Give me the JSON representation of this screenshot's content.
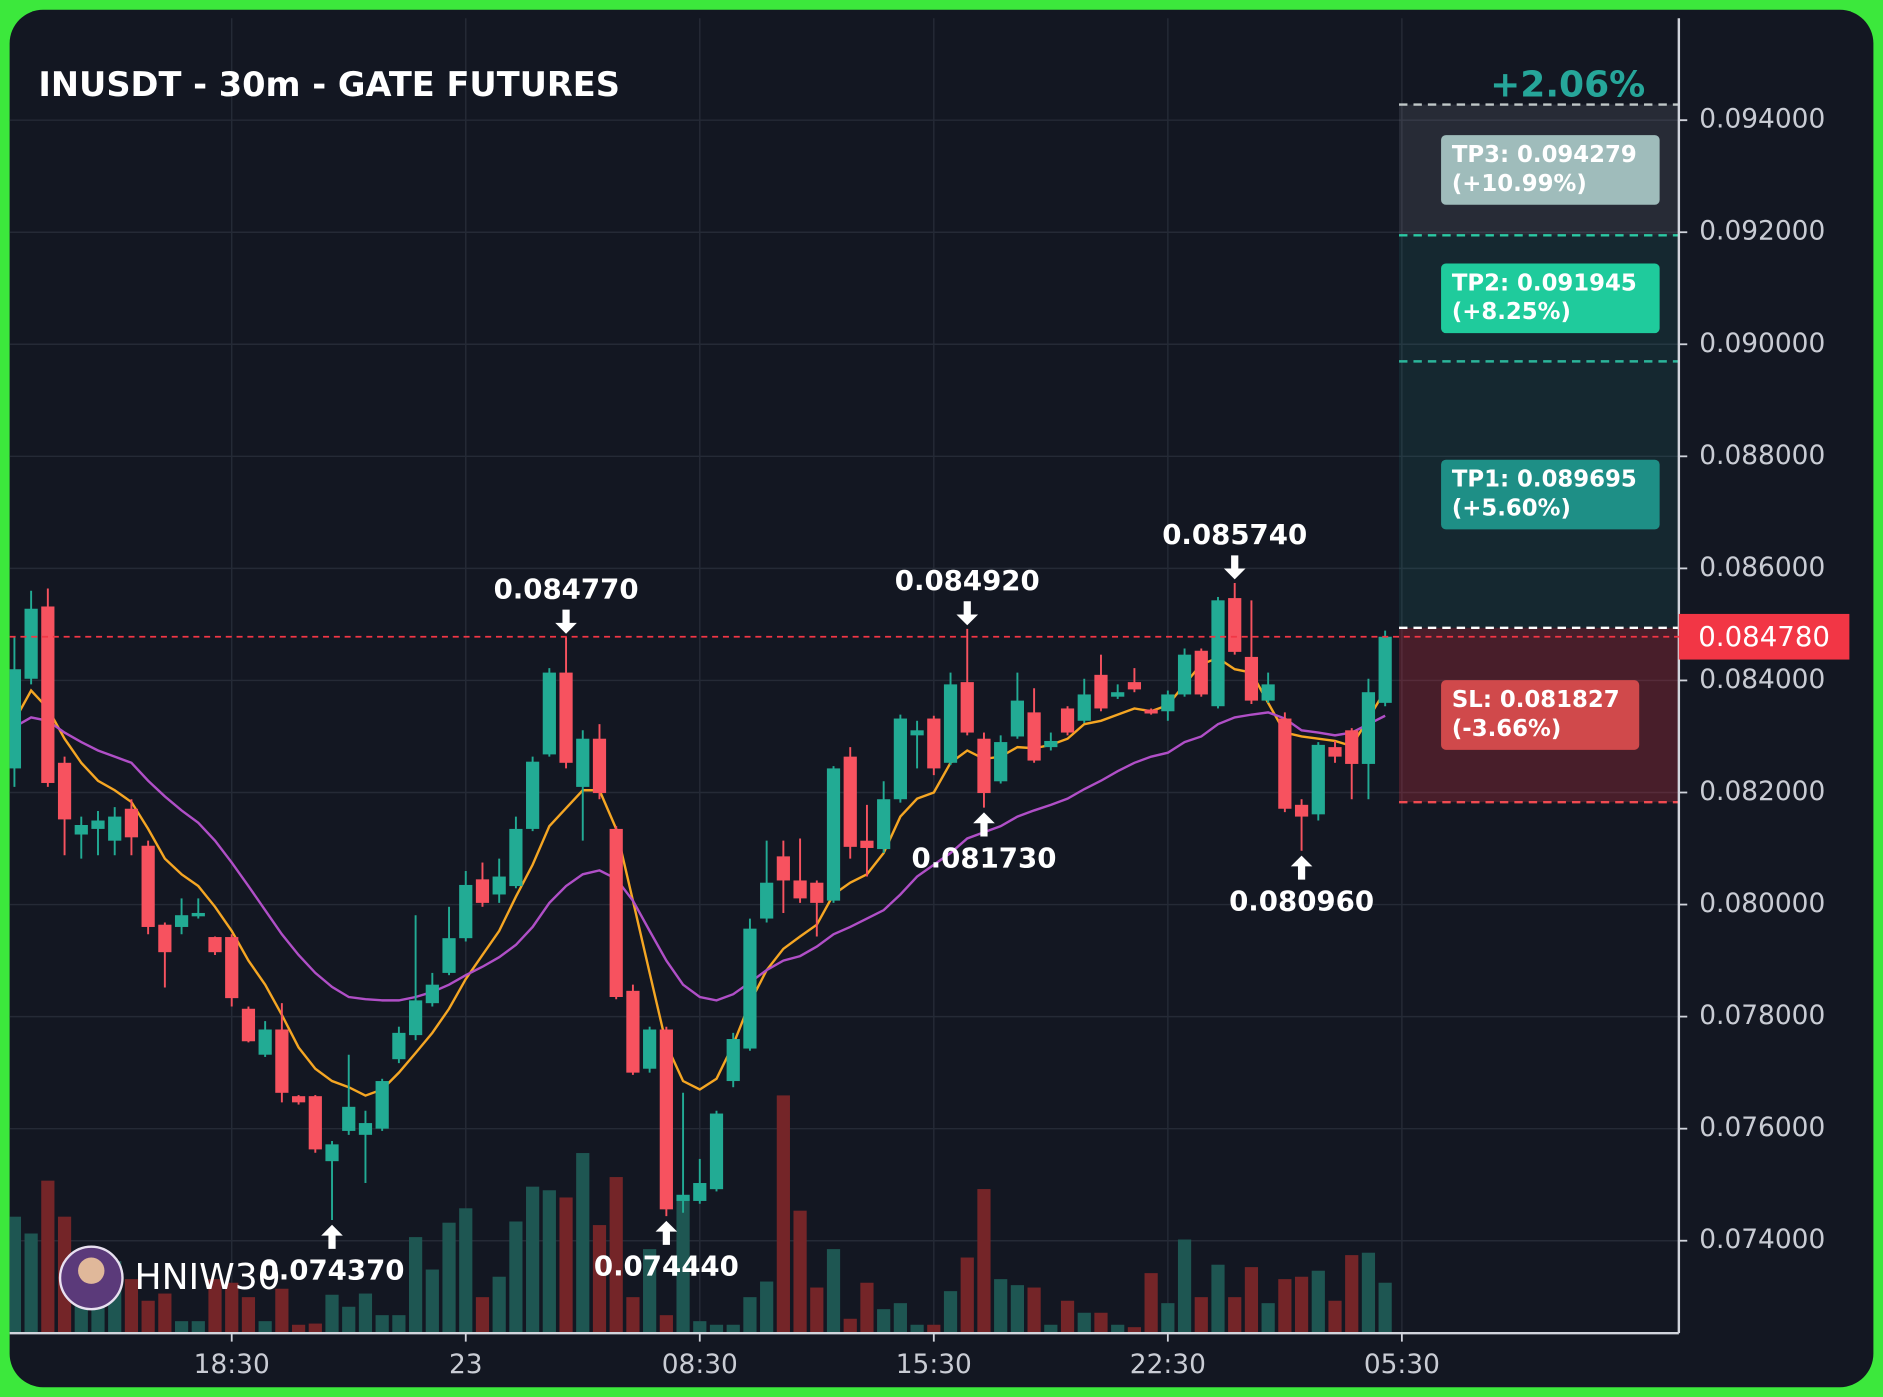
{
  "chart_data": {
    "type": "candlestick",
    "title": "INUSDT - 30m - GATE FUTURES",
    "watermark": "HNIW30",
    "up_color": "#22ab94",
    "down_color": "#f7525f",
    "volume_up_color": "#1e5652",
    "volume_down_color": "#742528",
    "grid": true,
    "ylim": [
      0.07235,
      0.09582
    ],
    "yticks": [
      {
        "value": 0.074,
        "label": "0.074000"
      },
      {
        "value": 0.076,
        "label": "0.076000"
      },
      {
        "value": 0.078,
        "label": "0.078000"
      },
      {
        "value": 0.08,
        "label": "0.080000"
      },
      {
        "value": 0.082,
        "label": "0.082000"
      },
      {
        "value": 0.084,
        "label": "0.084000"
      },
      {
        "value": 0.086,
        "label": "0.086000"
      },
      {
        "value": 0.088,
        "label": "0.088000"
      },
      {
        "value": 0.09,
        "label": "0.090000"
      },
      {
        "value": 0.092,
        "label": "0.092000"
      },
      {
        "value": 0.094,
        "label": "0.094000"
      }
    ],
    "volume_ylim": [
      0,
      1095
    ],
    "categories": [
      null,
      null,
      null,
      null,
      null,
      null,
      null,
      null,
      null,
      null,
      null,
      null,
      null,
      "18:30",
      null,
      null,
      null,
      null,
      null,
      null,
      null,
      null,
      null,
      null,
      null,
      null,
      null,
      "23",
      null,
      null,
      null,
      null,
      null,
      null,
      null,
      null,
      null,
      null,
      null,
      null,
      null,
      "08:30",
      null,
      null,
      null,
      null,
      null,
      null,
      null,
      null,
      null,
      null,
      null,
      null,
      null,
      "15:30",
      null,
      null,
      null,
      null,
      null,
      null,
      null,
      null,
      null,
      null,
      null,
      null,
      null,
      "22:30",
      null,
      null,
      null,
      null,
      null,
      null,
      null,
      null,
      null,
      null,
      null,
      null,
      null,
      "05:30"
    ],
    "open": [
      0.08243,
      0.08403,
      0.08532,
      0.08253,
      0.08125,
      0.08135,
      0.08114,
      0.08171,
      0.08105,
      0.07964,
      0.0796,
      0.07979,
      0.07942,
      0.07942,
      0.07814,
      0.07732,
      0.07777,
      0.07658,
      0.07658,
      0.07542,
      0.07596,
      0.07589,
      0.076,
      0.07724,
      0.07767,
      0.07824,
      0.07878,
      0.0794,
      0.08045,
      0.08018,
      0.08033,
      0.08135,
      0.08268,
      0.08414,
      0.0821,
      0.08296,
      0.08135,
      0.07846,
      0.07707,
      0.07777,
      0.07471,
      0.07471,
      0.07492,
      0.07685,
      0.07743,
      0.07975,
      0.08086,
      0.08043,
      0.08039,
      0.08007,
      0.08264,
      0.08114,
      0.08099,
      0.08188,
      0.08302,
      0.08332,
      0.08253,
      0.08397,
      0.08296,
      0.0822,
      0.083,
      0.08343,
      0.08281,
      0.0835,
      0.08328,
      0.0841,
      0.08371,
      0.08397,
      0.08348,
      0.08345,
      0.08375,
      0.08453,
      0.08354,
      0.08547,
      0.08442,
      0.08364,
      0.08332,
      0.08178,
      0.08161,
      0.08281,
      0.08311,
      0.08251,
      0.0836,
      null
    ],
    "high": [
      0.08478,
      0.0856,
      0.08564,
      0.08264,
      0.08157,
      0.08167,
      0.08174,
      0.08188,
      0.08114,
      0.07968,
      0.08011,
      0.08011,
      0.07943,
      0.07947,
      0.07818,
      0.07792,
      0.07824,
      0.0766,
      0.0766,
      0.07578,
      0.07732,
      0.07632,
      0.07689,
      0.07782,
      0.07981,
      0.07878,
      0.07996,
      0.0806,
      0.08075,
      0.08082,
      0.08157,
      0.08264,
      0.08422,
      0.08477,
      0.08311,
      0.08322,
      0.0814,
      0.07857,
      0.07782,
      0.07782,
      0.07664,
      0.07546,
      0.07632,
      0.07771,
      0.07975,
      0.08114,
      0.08114,
      0.08118,
      0.08043,
      0.08247,
      0.08281,
      0.08178,
      0.0822,
      0.08339,
      0.08328,
      0.08337,
      0.08414,
      0.08492,
      0.08307,
      0.08302,
      0.08414,
      0.08386,
      0.08307,
      0.08354,
      0.08403,
      0.08446,
      0.08393,
      0.08422,
      0.0835,
      0.08382,
      0.08457,
      0.08457,
      0.08549,
      0.08574,
      0.08543,
      0.08414,
      0.08343,
      0.08188,
      0.0829,
      0.08292,
      0.08315,
      0.08403,
      0.08489,
      null
    ],
    "low": [
      0.0821,
      0.08393,
      0.0821,
      0.08088,
      0.08082,
      0.08088,
      0.08088,
      0.08088,
      0.07947,
      0.07852,
      0.07947,
      0.07975,
      0.0791,
      0.07818,
      0.07754,
      0.07728,
      0.07647,
      0.07643,
      0.07557,
      0.07437,
      0.07589,
      0.07503,
      0.07596,
      0.07717,
      0.07758,
      0.07818,
      0.07874,
      0.07934,
      0.07996,
      0.08003,
      0.08029,
      0.08131,
      0.08264,
      0.08243,
      0.08114,
      0.08188,
      0.07831,
      0.07696,
      0.077,
      0.07444,
      0.0745,
      0.07466,
      0.07488,
      0.07674,
      0.07739,
      0.07968,
      0.07985,
      0.08003,
      0.07943,
      0.08003,
      0.08082,
      0.0805,
      0.08092,
      0.08182,
      0.08243,
      0.08231,
      0.08249,
      0.08302,
      0.08173,
      0.08216,
      0.08296,
      0.08253,
      0.08275,
      0.08302,
      0.08324,
      0.08345,
      0.08367,
      0.08379,
      0.08339,
      0.08328,
      0.08371,
      0.08371,
      0.0835,
      0.08446,
      0.08358,
      0.0836,
      0.08165,
      0.08096,
      0.0815,
      0.08253,
      0.08188,
      0.08188,
      0.08354,
      null
    ],
    "close": [
      0.0842,
      0.08528,
      0.08217,
      0.08152,
      0.08142,
      0.0815,
      0.08157,
      0.0812,
      0.0796,
      0.07915,
      0.07981,
      0.07985,
      0.07915,
      0.07833,
      0.07756,
      0.07777,
      0.07664,
      0.07647,
      0.07563,
      0.07572,
      0.07639,
      0.0761,
      0.07685,
      0.07771,
      0.07829,
      0.07857,
      0.0794,
      0.08035,
      0.08003,
      0.0805,
      0.08135,
      0.08255,
      0.08414,
      0.08253,
      0.08296,
      0.08199,
      0.07835,
      0.077,
      0.07777,
      0.07456,
      0.07482,
      0.07503,
      0.07627,
      0.0776,
      0.07957,
      0.08039,
      0.08043,
      0.08011,
      0.08003,
      0.08243,
      0.08103,
      0.08101,
      0.08188,
      0.08332,
      0.08311,
      0.08243,
      0.08393,
      0.08307,
      0.08199,
      0.0829,
      0.08364,
      0.08257,
      0.08292,
      0.08307,
      0.08375,
      0.0835,
      0.08379,
      0.08384,
      0.08341,
      0.08375,
      0.08446,
      0.08375,
      0.08543,
      0.08451,
      0.08364,
      0.08393,
      0.08171,
      0.08157,
      0.08285,
      0.08264,
      0.08251,
      0.08379,
      0.08478,
      null
    ],
    "volume": [
      97,
      83,
      127,
      97,
      50,
      32,
      60,
      45,
      27,
      33,
      10,
      10,
      45,
      42,
      30,
      10,
      37,
      7,
      8,
      32,
      22,
      33,
      15,
      15,
      80,
      53,
      92,
      104,
      30,
      47,
      93,
      122,
      119,
      113,
      150,
      90,
      130,
      30,
      70,
      15,
      112,
      10,
      7,
      7,
      30,
      43,
      198,
      102,
      38,
      70,
      12,
      42,
      20,
      25,
      7,
      7,
      35,
      63,
      120,
      45,
      40,
      38,
      7,
      27,
      17,
      17,
      7,
      5,
      50,
      25,
      78,
      30,
      57,
      30,
      55,
      25,
      45,
      47,
      52,
      27,
      65,
      67,
      42,
      null
    ],
    "high_labels": [
      null,
      null,
      null,
      null,
      null,
      null,
      null,
      null,
      null,
      null,
      null,
      null,
      null,
      null,
      null,
      null,
      null,
      null,
      null,
      null,
      null,
      null,
      null,
      null,
      null,
      null,
      null,
      null,
      null,
      null,
      null,
      null,
      null,
      "0.084770",
      null,
      null,
      null,
      null,
      null,
      null,
      null,
      null,
      null,
      null,
      null,
      null,
      null,
      null,
      null,
      null,
      null,
      null,
      null,
      null,
      null,
      null,
      null,
      "0.084920",
      null,
      null,
      null,
      null,
      null,
      null,
      null,
      null,
      null,
      null,
      null,
      null,
      null,
      null,
      null,
      "0.085740",
      null,
      null,
      null,
      null,
      null,
      null,
      null,
      null,
      null,
      null
    ],
    "low_labels": [
      null,
      null,
      null,
      null,
      null,
      null,
      null,
      null,
      null,
      null,
      null,
      null,
      null,
      null,
      null,
      null,
      null,
      null,
      null,
      "0.074370",
      null,
      null,
      null,
      null,
      null,
      null,
      null,
      null,
      null,
      null,
      null,
      null,
      null,
      null,
      null,
      null,
      null,
      null,
      null,
      "0.074440",
      null,
      null,
      null,
      null,
      null,
      null,
      null,
      null,
      null,
      null,
      null,
      null,
      null,
      null,
      null,
      null,
      null,
      null,
      "0.081730",
      null,
      null,
      null,
      null,
      null,
      null,
      null,
      null,
      null,
      null,
      null,
      null,
      null,
      null,
      null,
      null,
      null,
      null,
      "0.080960",
      null,
      null,
      null,
      null,
      null,
      null
    ],
    "lines": [
      {
        "color": "#f5a623",
        "values": [
          0.08328,
          0.08382,
          0.0835,
          0.08296,
          0.08253,
          0.08221,
          0.08204,
          0.08183,
          0.08135,
          0.08082,
          0.08054,
          0.08033,
          0.07996,
          0.07953,
          0.079,
          0.07857,
          0.07803,
          0.07745,
          0.07707,
          0.07685,
          0.07674,
          0.07659,
          0.0767,
          0.077,
          0.07735,
          0.07771,
          0.07814,
          0.07867,
          0.0791,
          0.07953,
          0.08014,
          0.08071,
          0.0814,
          0.08172,
          0.08204,
          0.08204,
          0.08135,
          0.08007,
          0.07878,
          0.0775,
          0.07685,
          0.0767,
          0.07689,
          0.0775,
          0.07825,
          0.07883,
          0.07921,
          0.07943,
          0.07964,
          0.08018,
          0.08039,
          0.08054,
          0.08092,
          0.08157,
          0.08189,
          0.082,
          0.08253,
          0.08275,
          0.0826,
          0.08264,
          0.08281,
          0.08279,
          0.08285,
          0.08296,
          0.08322,
          0.08328,
          0.08339,
          0.0835,
          0.08345,
          0.08356,
          0.08393,
          0.08429,
          0.0844,
          0.0842,
          0.08414,
          0.0836,
          0.08307,
          0.083,
          0.08296,
          0.08292,
          0.08283,
          0.08332,
          0.08382,
          null
        ]
      },
      {
        "color": "#b04fc7",
        "values": [
          0.08317,
          0.08334,
          0.08328,
          0.08307,
          0.0829,
          0.08275,
          0.08264,
          0.08253,
          0.08221,
          0.08193,
          0.08168,
          0.08146,
          0.08114,
          0.08075,
          0.08033,
          0.0799,
          0.07947,
          0.0791,
          0.07878,
          0.07853,
          0.07835,
          0.07831,
          0.07829,
          0.07829,
          0.07835,
          0.07844,
          0.07857,
          0.07874,
          0.07889,
          0.07906,
          0.07928,
          0.0796,
          0.08003,
          0.08033,
          0.08054,
          0.08061,
          0.08046,
          0.08007,
          0.07953,
          0.079,
          0.07857,
          0.07835,
          0.07829,
          0.0784,
          0.07861,
          0.07883,
          0.079,
          0.07908,
          0.07925,
          0.07947,
          0.0796,
          0.07975,
          0.0799,
          0.08018,
          0.0805,
          0.08071,
          0.08092,
          0.08118,
          0.08129,
          0.0814,
          0.08157,
          0.08168,
          0.08178,
          0.08189,
          0.08206,
          0.08221,
          0.08238,
          0.08253,
          0.08264,
          0.08271,
          0.0829,
          0.083,
          0.08322,
          0.08334,
          0.08339,
          0.08343,
          0.08332,
          0.08311,
          0.08307,
          0.08302,
          0.08307,
          0.08322,
          0.08337,
          null
        ]
      }
    ],
    "last_price": 0.08478,
    "last_price_label": "0.084780",
    "last_price_color": "#f23645",
    "position": {
      "change_label": "+2.06%",
      "change_color": "#26a69a",
      "entry": 0.08494,
      "target_zone_color": "rgba(178,181,190,0.13)",
      "profit_zone_color": "rgba(38,166,154,0.12)",
      "loss_zone_color": "rgba(242,54,69,0.24)",
      "targets": [
        {
          "label": "TP3: 0.094279",
          "percent": "(+10.99%)",
          "value": 0.094279,
          "line_color": "#c0c8c8",
          "box_color": "#9fbcbb"
        },
        {
          "label": "TP2: 0.091945",
          "percent": "(+8.25%)",
          "value": 0.091945,
          "line_color": "#2bc9a3",
          "box_color": "#1fcb9c"
        },
        {
          "label": "TP1: 0.089695",
          "percent": "(+5.60%)",
          "value": 0.089695,
          "line_color": "#2bb59a",
          "box_color": "#1e8f86"
        }
      ],
      "stop": {
        "label": "SL: 0.081827",
        "percent": "(-3.66%)",
        "value": 0.081827,
        "line_color": "#f04a50",
        "box_color": "#d0494b"
      }
    }
  }
}
